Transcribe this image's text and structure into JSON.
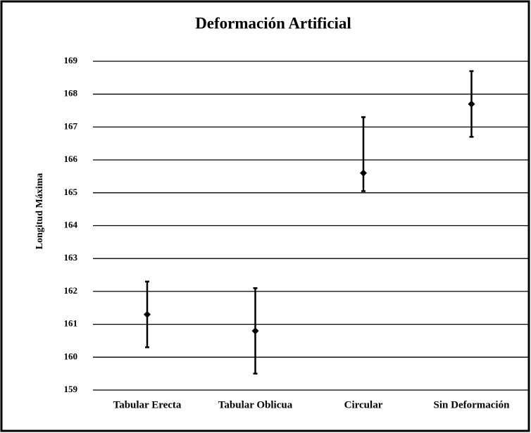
{
  "chart_data": {
    "type": "errorbar",
    "title": "Deformación Artificial",
    "y_label": "Longitud Máxima",
    "categories": [
      "Tabular Erecta",
      "Tabular Oblicua",
      "Circular",
      "Sin Deformación"
    ],
    "values": [
      161.3,
      160.8,
      165.6,
      167.7
    ],
    "errors_plus": [
      1.0,
      1.3,
      1.7,
      1.0
    ],
    "errors_minus": [
      1.0,
      1.3,
      0.55,
      1.0
    ],
    "color": "#000000",
    "ylim": [
      159,
      169
    ],
    "yticks": [
      159,
      160,
      161,
      162,
      163,
      164,
      165,
      166,
      167,
      168,
      169
    ],
    "grid": true
  }
}
